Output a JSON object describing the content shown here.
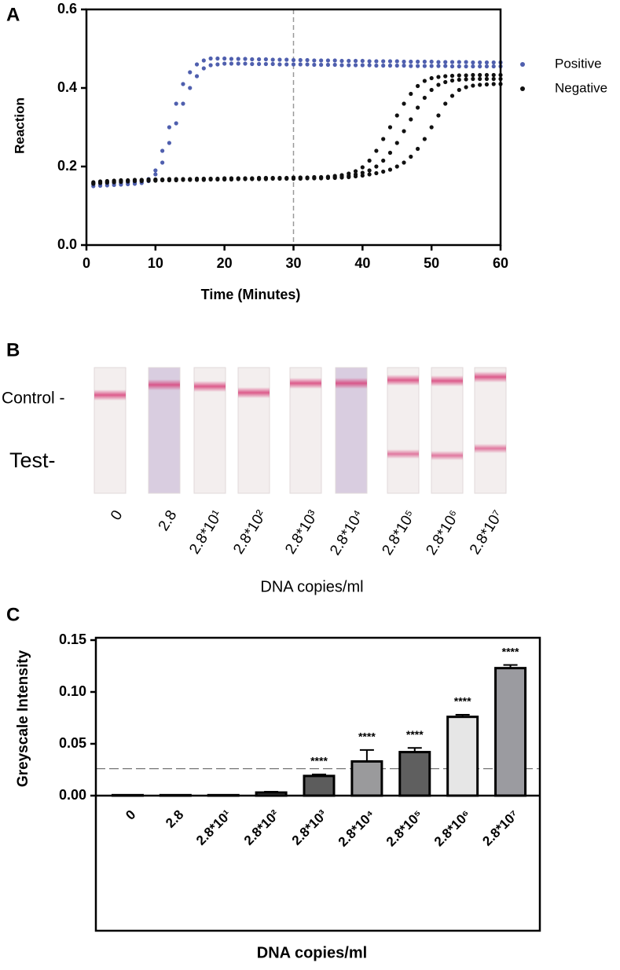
{
  "chart_data": [
    {
      "type": "scatter",
      "panel": "A",
      "xlabel": "Time (Minutes)",
      "ylabel": "Reaction",
      "xlim": [
        0,
        60
      ],
      "xticks": [
        0,
        10,
        20,
        30,
        40,
        50,
        60
      ],
      "ylim": [
        0,
        0.6
      ],
      "yticks": [
        {
          "value": 0,
          "label": "0.0"
        },
        0.2,
        0.4,
        0.6
      ],
      "vline": 30,
      "x": [
        1,
        2,
        3,
        4,
        5,
        6,
        7,
        8,
        9,
        10,
        11,
        12,
        13,
        14,
        15,
        16,
        17,
        18,
        19,
        20,
        21,
        22,
        23,
        24,
        25,
        26,
        27,
        28,
        29,
        30,
        31,
        32,
        33,
        34,
        35,
        36,
        37,
        38,
        39,
        40,
        41,
        42,
        43,
        44,
        45,
        46,
        47,
        48,
        49,
        50,
        51,
        52,
        53,
        54,
        55,
        56,
        57,
        58,
        59,
        60
      ],
      "series": [
        {
          "name": "Positive",
          "color": "#4f5fae",
          "values": [
            [
              0.155,
              0.156,
              0.157,
              0.158,
              0.158,
              0.159,
              0.16,
              0.162,
              0.168,
              0.19,
              0.24,
              0.3,
              0.36,
              0.41,
              0.44,
              0.46,
              0.47,
              0.475,
              0.475,
              0.475,
              0.474,
              0.474,
              0.474,
              0.473,
              0.473,
              0.473,
              0.472,
              0.472,
              0.472,
              0.471,
              0.471,
              0.471,
              0.47,
              0.47,
              0.47,
              0.47,
              0.469,
              0.469,
              0.469,
              0.469,
              0.468,
              0.468,
              0.468,
              0.468,
              0.468,
              0.467,
              0.467,
              0.467,
              0.467,
              0.467,
              0.466,
              0.466,
              0.466,
              0.466,
              0.466,
              0.465,
              0.465,
              0.465,
              0.465,
              0.465
            ],
            [
              0.15,
              0.151,
              0.152,
              0.153,
              0.154,
              0.155,
              0.156,
              0.158,
              0.163,
              0.18,
              0.21,
              0.26,
              0.31,
              0.36,
              0.4,
              0.43,
              0.45,
              0.458,
              0.46,
              0.462,
              0.462,
              0.462,
              0.462,
              0.461,
              0.461,
              0.461,
              0.461,
              0.46,
              0.46,
              0.46,
              0.46,
              0.46,
              0.459,
              0.459,
              0.459,
              0.459,
              0.458,
              0.458,
              0.458,
              0.458,
              0.458,
              0.457,
              0.457,
              0.457,
              0.457,
              0.457,
              0.456,
              0.456,
              0.456,
              0.456,
              0.456,
              0.456,
              0.455,
              0.455,
              0.455,
              0.455,
              0.455,
              0.455,
              0.455,
              0.455
            ]
          ]
        },
        {
          "name": "Negative",
          "color": "#111111",
          "values": [
            [
              0.16,
              0.162,
              0.163,
              0.164,
              0.165,
              0.165,
              0.166,
              0.166,
              0.167,
              0.167,
              0.167,
              0.168,
              0.168,
              0.168,
              0.168,
              0.169,
              0.169,
              0.169,
              0.169,
              0.17,
              0.17,
              0.17,
              0.17,
              0.17,
              0.171,
              0.171,
              0.171,
              0.171,
              0.171,
              0.172,
              0.172,
              0.172,
              0.173,
              0.173,
              0.174,
              0.176,
              0.178,
              0.182,
              0.188,
              0.198,
              0.215,
              0.24,
              0.27,
              0.3,
              0.33,
              0.36,
              0.385,
              0.405,
              0.418,
              0.425,
              0.428,
              0.43,
              0.431,
              0.432,
              0.432,
              0.433,
              0.433,
              0.433,
              0.433,
              0.433
            ],
            [
              0.158,
              0.16,
              0.161,
              0.162,
              0.163,
              0.164,
              0.164,
              0.165,
              0.165,
              0.166,
              0.166,
              0.166,
              0.167,
              0.167,
              0.167,
              0.167,
              0.168,
              0.168,
              0.168,
              0.168,
              0.169,
              0.169,
              0.169,
              0.169,
              0.169,
              0.17,
              0.17,
              0.17,
              0.17,
              0.17,
              0.171,
              0.171,
              0.171,
              0.172,
              0.172,
              0.173,
              0.174,
              0.176,
              0.18,
              0.184,
              0.19,
              0.2,
              0.215,
              0.235,
              0.26,
              0.29,
              0.32,
              0.35,
              0.375,
              0.395,
              0.408,
              0.415,
              0.419,
              0.421,
              0.422,
              0.423,
              0.423,
              0.423,
              0.423,
              0.423
            ],
            [
              0.156,
              0.158,
              0.159,
              0.16,
              0.161,
              0.162,
              0.163,
              0.163,
              0.164,
              0.164,
              0.165,
              0.165,
              0.165,
              0.166,
              0.166,
              0.166,
              0.166,
              0.167,
              0.167,
              0.167,
              0.167,
              0.168,
              0.168,
              0.168,
              0.168,
              0.168,
              0.169,
              0.169,
              0.169,
              0.169,
              0.169,
              0.17,
              0.17,
              0.17,
              0.171,
              0.171,
              0.172,
              0.173,
              0.175,
              0.177,
              0.18,
              0.183,
              0.187,
              0.192,
              0.2,
              0.21,
              0.225,
              0.245,
              0.27,
              0.3,
              0.33,
              0.36,
              0.38,
              0.395,
              0.402,
              0.406,
              0.408,
              0.409,
              0.41,
              0.41
            ]
          ]
        }
      ]
    },
    {
      "type": "bar",
      "panel": "C",
      "xlabel": "DNA copies/ml",
      "ylabel": "Greyscale Intensity",
      "categories": [
        "0",
        "2.8",
        "2.8*10¹",
        "2.8*10²",
        "2.8*10³",
        "2.8*10⁴",
        "2.8*10⁵",
        "2.8*10⁶",
        "2.8*10⁷"
      ],
      "values": [
        0.0005,
        0.0005,
        0.0005,
        0.003,
        0.019,
        0.033,
        0.042,
        0.076,
        0.123
      ],
      "errors": [
        0.0003,
        0.0003,
        0.0003,
        0.0008,
        0.0015,
        0.011,
        0.004,
        0.002,
        0.003
      ],
      "colors": [
        "#3a3a3a",
        "#3a3a3a",
        "#3a3a3a",
        "#4a4a4a",
        "#5c5c5c",
        "#9a9a9c",
        "#5f5f5f",
        "#e6e6e6",
        "#9b9ba0"
      ],
      "annotations": [
        null,
        null,
        null,
        null,
        "****",
        "****",
        "****",
        "****",
        "****"
      ],
      "hline": 0.026,
      "ylim": [
        0,
        0.15
      ],
      "yticks": [
        {
          "value": 0,
          "label": "0.00"
        },
        0.05,
        {
          "value": 0.1,
          "label": "0.10"
        },
        0.15
      ]
    }
  ],
  "strips": {
    "panel": "B",
    "row_labels": [
      "Control -",
      "Test-"
    ],
    "categories": [
      "0",
      "2.8",
      "2.8*10¹",
      "2.8*10²",
      "2.8*10³",
      "2.8*10⁴",
      "2.8*10⁵",
      "2.8*10⁶",
      "2.8*10⁷"
    ],
    "xlabel": "DNA copies/ml"
  }
}
